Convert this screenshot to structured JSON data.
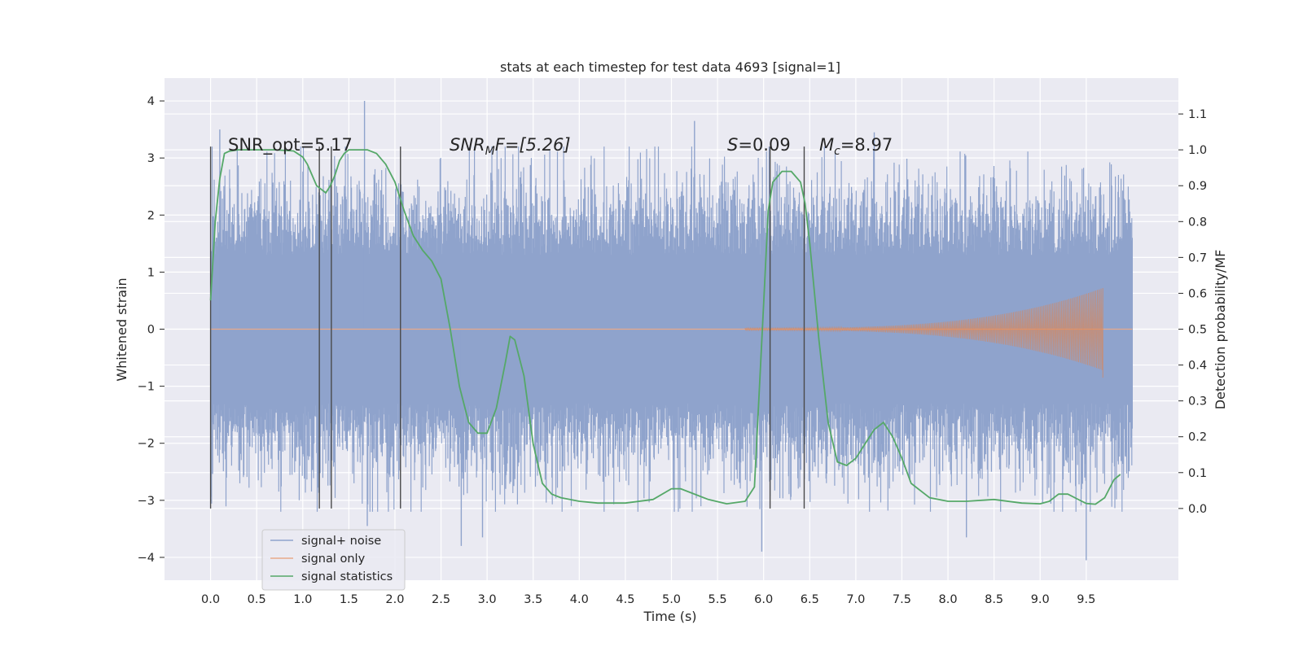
{
  "chart_data": {
    "type": "line",
    "title": "stats at each timestep for test data 4693 [signal=1]",
    "xlabel": "Time (s)",
    "ylabel_left": "Whitened strain",
    "ylabel_right": "Detection probability/MF",
    "xlim": [
      -0.5,
      10.5
    ],
    "ylim_left": [
      -4.4,
      4.4
    ],
    "ylim_right": [
      -0.2,
      1.2
    ],
    "grid": true,
    "legend_position": "lower-left",
    "xticks": [
      "0.0",
      "0.5",
      "1.0",
      "1.5",
      "2.0",
      "2.5",
      "3.0",
      "3.5",
      "4.0",
      "4.5",
      "5.0",
      "5.5",
      "6.0",
      "6.5",
      "7.0",
      "7.5",
      "8.0",
      "8.5",
      "9.0",
      "9.5"
    ],
    "yticks_left": [
      "4",
      "3",
      "2",
      "1",
      "0",
      "−1",
      "−2",
      "−3",
      "−4"
    ],
    "yticks_right": [
      "1.1",
      "1.0",
      "0.9",
      "0.8",
      "0.7",
      "0.6",
      "0.5",
      "0.4",
      "0.3",
      "0.2",
      "0.1",
      "0.0"
    ],
    "annotations": {
      "snr_opt": "SNR_opt=5.17",
      "snr_mf_main": "SNR",
      "snr_mf_sub": "M",
      "snr_mf_rest": "F=[5.26]",
      "s_main": "S",
      "s_rest": "=0.09",
      "mc_main": "M",
      "mc_sub": "c",
      "mc_rest": "=8.97"
    },
    "vertical_markers_s": [
      0.0,
      1.18,
      1.31,
      2.06,
      6.07,
      6.44
    ],
    "series": [
      {
        "name": "signal+ noise",
        "color": "#8fa3cc",
        "t_range": [
          0.0,
          10.0
        ],
        "envelope_typical": [
          -1.3,
          1.3
        ],
        "peaks_approx": [
          {
            "t": 1.67,
            "y": 4.0
          },
          {
            "t": 0.1,
            "y": 3.5
          },
          {
            "t": 5.25,
            "y": 3.65
          },
          {
            "t": 7.2,
            "y": 3.45
          },
          {
            "t": 2.72,
            "y": -3.8
          },
          {
            "t": 2.95,
            "y": -3.65
          },
          {
            "t": 5.98,
            "y": -3.9
          },
          {
            "t": 9.5,
            "y": -4.05
          },
          {
            "t": 8.2,
            "y": -3.65
          },
          {
            "t": 1.7,
            "y": -3.45
          }
        ]
      },
      {
        "name": "signal only",
        "color": "#dd8452",
        "t_range": [
          0.0,
          9.68
        ],
        "peak_amplitude": 0.7
      },
      {
        "name": "signal statistics",
        "color": "#55a868",
        "axis": "right",
        "x": [
          0.0,
          0.05,
          0.1,
          0.15,
          0.2,
          0.3,
          0.5,
          0.7,
          0.9,
          1.0,
          1.05,
          1.1,
          1.15,
          1.2,
          1.25,
          1.3,
          1.35,
          1.4,
          1.45,
          1.5,
          1.6,
          1.7,
          1.8,
          1.9,
          2.0,
          2.05,
          2.1,
          2.2,
          2.3,
          2.4,
          2.5,
          2.6,
          2.7,
          2.8,
          2.9,
          3.0,
          3.1,
          3.2,
          3.25,
          3.3,
          3.4,
          3.5,
          3.6,
          3.7,
          3.8,
          4.0,
          4.2,
          4.5,
          4.8,
          5.0,
          5.1,
          5.2,
          5.4,
          5.6,
          5.8,
          5.9,
          6.0,
          6.05,
          6.1,
          6.2,
          6.3,
          6.4,
          6.45,
          6.5,
          6.6,
          6.7,
          6.8,
          6.9,
          7.0,
          7.1,
          7.2,
          7.3,
          7.4,
          7.5,
          7.6,
          7.8,
          8.0,
          8.2,
          8.5,
          8.8,
          9.0,
          9.1,
          9.2,
          9.3,
          9.4,
          9.5,
          9.6,
          9.7,
          9.8,
          9.87
        ],
        "y": [
          0.58,
          0.8,
          0.92,
          0.99,
          0.996,
          1.0,
          1.0,
          1.0,
          0.997,
          0.98,
          0.96,
          0.93,
          0.9,
          0.89,
          0.88,
          0.9,
          0.93,
          0.97,
          0.99,
          1.0,
          1.0,
          1.0,
          0.99,
          0.96,
          0.91,
          0.87,
          0.83,
          0.76,
          0.72,
          0.69,
          0.64,
          0.5,
          0.34,
          0.24,
          0.21,
          0.21,
          0.28,
          0.41,
          0.48,
          0.47,
          0.37,
          0.18,
          0.07,
          0.04,
          0.03,
          0.02,
          0.015,
          0.015,
          0.025,
          0.055,
          0.055,
          0.045,
          0.025,
          0.013,
          0.02,
          0.06,
          0.57,
          0.83,
          0.91,
          0.94,
          0.94,
          0.91,
          0.85,
          0.74,
          0.47,
          0.24,
          0.13,
          0.12,
          0.14,
          0.18,
          0.22,
          0.24,
          0.2,
          0.14,
          0.07,
          0.03,
          0.02,
          0.02,
          0.025,
          0.015,
          0.013,
          0.02,
          0.04,
          0.04,
          0.027,
          0.014,
          0.012,
          0.03,
          0.08,
          0.095
        ]
      }
    ]
  }
}
